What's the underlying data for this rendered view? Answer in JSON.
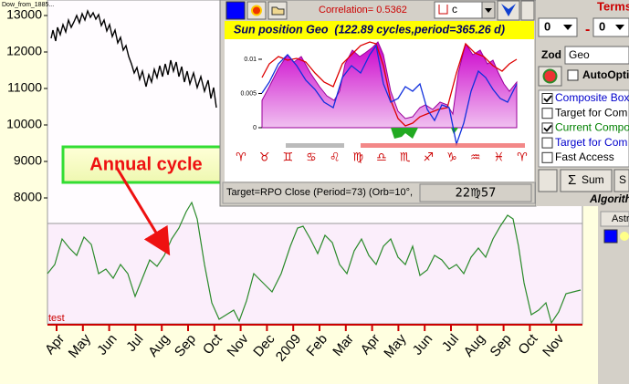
{
  "main_chart": {
    "file_label": "Dow_from_1885...",
    "ylim": [
      7300,
      13425
    ],
    "yticks": [
      13000,
      12000,
      11000,
      10000,
      9000,
      8000
    ],
    "x_labels": [
      "Apr",
      "May",
      "Jun",
      "Jul",
      "Aug",
      "Sep",
      "Oct",
      "Nov",
      "Dec",
      "2009",
      "Feb",
      "Mar",
      "Apr",
      "May",
      "Jun",
      "Jul",
      "Aug",
      "Sep",
      "Oct",
      "Nov"
    ],
    "lower_label": "test"
  },
  "annotation": {
    "text": "Annual cycle"
  },
  "window": {
    "correlation": "Correlation= 0.5362",
    "target_box": "c",
    "title": "Sun position Geo  (122.89 cycles,period=365.26 d)",
    "ylim": [
      -0.00107,
      0.01133
    ],
    "yticks": [
      0.01,
      0.005,
      0
    ],
    "zodiac": [
      "♈",
      "♉",
      "♊",
      "♋",
      "♌",
      "♍",
      "♎",
      "♏",
      "♐",
      "♑",
      "♒",
      "♓",
      "♈"
    ],
    "status": "Target=RPO Close (Period=73) (Orb=10°,",
    "position": "22♍57"
  },
  "right_panel": {
    "title": "Terms",
    "offset_left": "0",
    "separator": "-",
    "offset_right": "0",
    "zod_label": "Zod",
    "zod_value": "Geo",
    "auto_opti": "AutoOpti",
    "options": [
      {
        "label": "Composite Box",
        "checked": true,
        "color": "#0000cc"
      },
      {
        "label": "Target for Com",
        "checked": false,
        "color": "#000000"
      },
      {
        "label": "Current Compo",
        "checked": true,
        "color": "#008000"
      },
      {
        "label": "Target for Com",
        "checked": false,
        "color": "#0000cc"
      },
      {
        "label": "Fast Access",
        "checked": false,
        "color": "#000000"
      }
    ],
    "sum_icon": "Σ",
    "sum_button": "Sum",
    "extra_button": "S",
    "algorithm": "Algorith",
    "tab": "Astr"
  }
}
